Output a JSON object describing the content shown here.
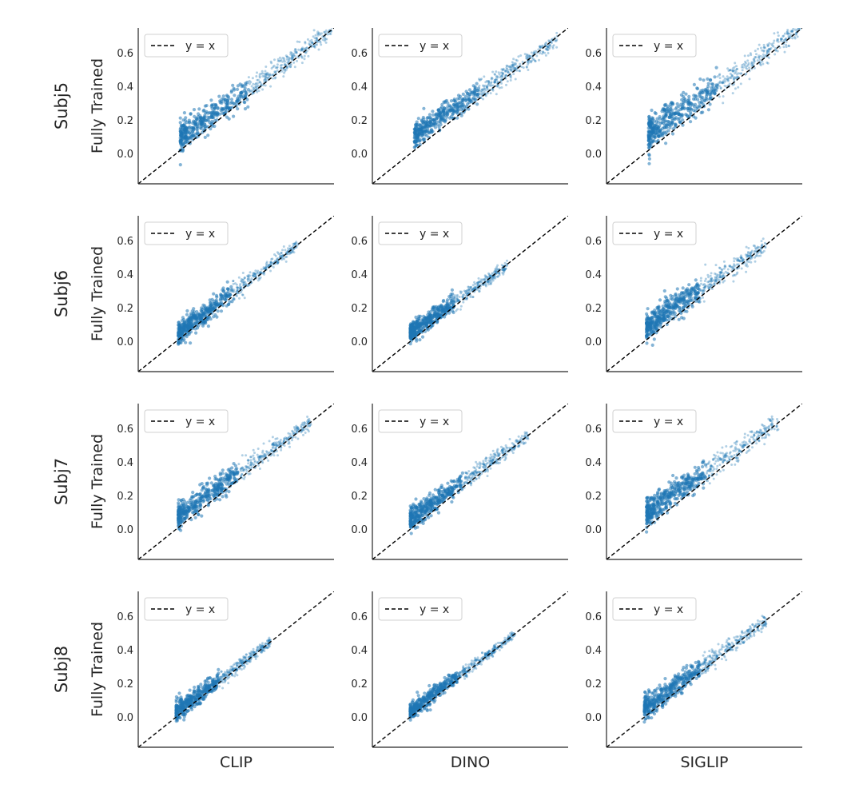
{
  "chart_data": {
    "type": "scatter",
    "rows": [
      "Subj5",
      "Subj6",
      "Subj7",
      "Subj8"
    ],
    "columns": [
      "CLIP",
      "DINO",
      "SIGLIP"
    ],
    "ylabel": "Fully Trained",
    "legend": {
      "label": "y = x",
      "position": "top-left"
    },
    "reference_line": "y = x",
    "xlim": [
      -0.18,
      0.75
    ],
    "ylim": [
      -0.18,
      0.75
    ],
    "yticks": [
      0.0,
      0.2,
      0.4,
      0.6
    ],
    "ytick_labels": [
      "0.0",
      "0.2",
      "0.4",
      "0.6"
    ],
    "color": "#1f77b4",
    "panels": [
      {
        "row": "Subj5",
        "column": "CLIP",
        "xrange": [
          0.02,
          0.74
        ],
        "offset_low": 0.07,
        "offset_high": 0.0,
        "spread": 0.045
      },
      {
        "row": "Subj5",
        "column": "DINO",
        "xrange": [
          0.02,
          0.7
        ],
        "offset_low": 0.09,
        "offset_high": -0.02,
        "spread": 0.04
      },
      {
        "row": "Subj5",
        "column": "SIGLIP",
        "xrange": [
          0.02,
          0.74
        ],
        "offset_low": 0.1,
        "offset_high": 0.0,
        "spread": 0.055
      },
      {
        "row": "Subj6",
        "column": "CLIP",
        "xrange": [
          0.01,
          0.58
        ],
        "offset_low": 0.04,
        "offset_high": 0.0,
        "spread": 0.035
      },
      {
        "row": "Subj6",
        "column": "DINO",
        "xrange": [
          0.0,
          0.46
        ],
        "offset_low": 0.05,
        "offset_high": -0.01,
        "spread": 0.03
      },
      {
        "row": "Subj6",
        "column": "SIGLIP",
        "xrange": [
          0.01,
          0.58
        ],
        "offset_low": 0.08,
        "offset_high": 0.0,
        "spread": 0.045
      },
      {
        "row": "Subj7",
        "column": "CLIP",
        "xrange": [
          0.01,
          0.64
        ],
        "offset_low": 0.07,
        "offset_high": 0.0,
        "spread": 0.04
      },
      {
        "row": "Subj7",
        "column": "DINO",
        "xrange": [
          0.0,
          0.56
        ],
        "offset_low": 0.06,
        "offset_high": 0.0,
        "spread": 0.035
      },
      {
        "row": "Subj7",
        "column": "SIGLIP",
        "xrange": [
          0.01,
          0.64
        ],
        "offset_low": 0.09,
        "offset_high": 0.0,
        "spread": 0.045
      },
      {
        "row": "Subj8",
        "column": "CLIP",
        "xrange": [
          0.0,
          0.45
        ],
        "offset_low": 0.03,
        "offset_high": 0.0,
        "spread": 0.03
      },
      {
        "row": "Subj8",
        "column": "DINO",
        "xrange": [
          0.0,
          0.5
        ],
        "offset_low": 0.03,
        "offset_high": 0.0,
        "spread": 0.025
      },
      {
        "row": "Subj8",
        "column": "SIGLIP",
        "xrange": [
          0.0,
          0.58
        ],
        "offset_low": 0.05,
        "offset_high": 0.0,
        "spread": 0.035
      }
    ]
  }
}
